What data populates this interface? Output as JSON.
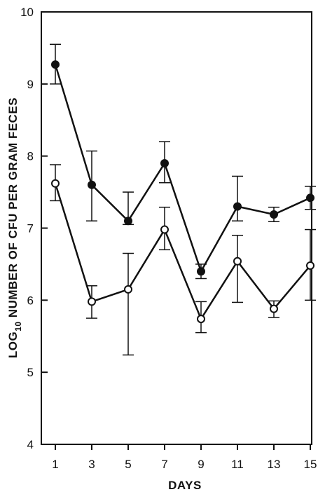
{
  "chart_data": {
    "type": "line",
    "title": "",
    "xlabel": "DAYS",
    "ylabel": {
      "prefix": "LOG",
      "subscript": "10",
      "rest": " NUMBER OF CFU PER GRAM FECES"
    },
    "x": [
      1,
      3,
      5,
      7,
      9,
      11,
      13,
      15
    ],
    "xlim": [
      1,
      15
    ],
    "ylim": [
      4,
      10
    ],
    "xticks": [
      "1",
      "3",
      "5",
      "7",
      "9",
      "11",
      "13",
      "15"
    ],
    "yticks": [
      "4",
      "5",
      "6",
      "7",
      "8",
      "9",
      "10"
    ],
    "grid": false,
    "legend": "none",
    "colors": {
      "line": "#111111",
      "filled_marker": "#111111",
      "open_marker_fill": "#ffffff"
    },
    "series": [
      {
        "marker": "filled-circle",
        "values": [
          9.27,
          7.6,
          7.1,
          7.9,
          6.4,
          7.3,
          7.19,
          7.42
        ],
        "error_upper": [
          9.55,
          8.07,
          7.5,
          8.2,
          6.5,
          7.72,
          7.29,
          7.58
        ],
        "error_lower": [
          9.0,
          7.1,
          7.05,
          7.63,
          6.3,
          7.1,
          7.09,
          7.26
        ]
      },
      {
        "marker": "open-circle",
        "values": [
          7.62,
          5.98,
          6.15,
          6.98,
          5.74,
          6.54,
          5.88,
          6.48
        ],
        "error_upper": [
          7.88,
          6.2,
          6.65,
          7.29,
          5.98,
          6.9,
          5.99,
          6.98
        ],
        "error_lower": [
          7.38,
          5.75,
          5.24,
          6.7,
          5.55,
          5.97,
          5.76,
          6.0
        ]
      }
    ]
  }
}
